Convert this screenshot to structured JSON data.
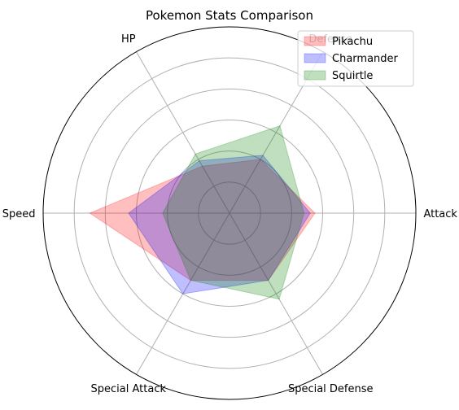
{
  "chart_data": {
    "type": "radar",
    "title": "Pokemon Stats Comparison",
    "axes": [
      "Attack",
      "Defense",
      "HP",
      "Speed",
      "Special Attack",
      "Special Defense"
    ],
    "rlim": [
      0,
      120
    ],
    "rticks": [
      20,
      40,
      60,
      80,
      100
    ],
    "grid": true,
    "legend_position": "top-right",
    "series": [
      {
        "name": "Pikachu",
        "color": "#ff0000",
        "values": [
          55,
          40,
          35,
          90,
          50,
          50
        ]
      },
      {
        "name": "Charmander",
        "color": "#0000ff",
        "values": [
          52,
          43,
          39,
          65,
          60,
          50
        ]
      },
      {
        "name": "Squirtle",
        "color": "#008000",
        "values": [
          48,
          65,
          44,
          43,
          50,
          64
        ]
      }
    ]
  }
}
